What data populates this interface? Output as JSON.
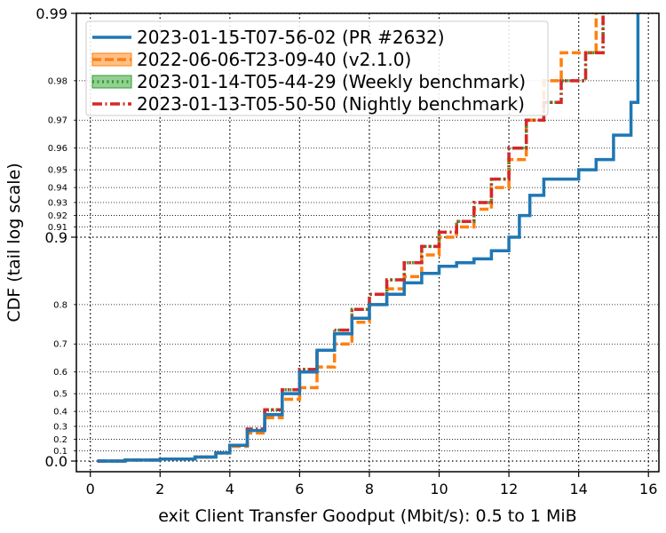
{
  "chart_data": {
    "type": "line",
    "xlabel": "exit Client Transfer Goodput (Mbit/s): 0.5 to 1 MiB",
    "ylabel": "CDF (tail log scale)",
    "xlim": [
      -0.4,
      16.3
    ],
    "x_ticks": [
      0,
      2,
      4,
      6,
      8,
      10,
      12,
      14,
      16
    ],
    "y_scale": "tail log",
    "y_ticks_major": [
      {
        "value": 0.0,
        "label": "0.0"
      },
      {
        "value": 0.9,
        "label": "0.9"
      },
      {
        "value": 0.99,
        "label": "0.99"
      }
    ],
    "y_ticks_minor": [
      {
        "value": 0.1,
        "label": "0.1"
      },
      {
        "value": 0.2,
        "label": "0.2"
      },
      {
        "value": 0.3,
        "label": "0.3"
      },
      {
        "value": 0.4,
        "label": "0.4"
      },
      {
        "value": 0.5,
        "label": "0.5"
      },
      {
        "value": 0.6,
        "label": "0.6"
      },
      {
        "value": 0.7,
        "label": "0.7"
      },
      {
        "value": 0.8,
        "label": "0.8"
      },
      {
        "value": 0.91,
        "label": "0.91"
      },
      {
        "value": 0.92,
        "label": "0.92"
      },
      {
        "value": 0.93,
        "label": "0.93"
      },
      {
        "value": 0.94,
        "label": "0.94"
      },
      {
        "value": 0.95,
        "label": "0.95"
      },
      {
        "value": 0.96,
        "label": "0.96"
      },
      {
        "value": 0.97,
        "label": "0.97"
      },
      {
        "value": 0.98,
        "label": "0.98"
      }
    ],
    "grid": true,
    "legend_position": "top-left",
    "series": [
      {
        "name": "2023-01-15-T07-56-02 (PR #2632)",
        "color": "#1f77b4",
        "style": "solid",
        "points": [
          [
            0.2,
            0.0
          ],
          [
            1.0,
            0.01
          ],
          [
            2.0,
            0.02
          ],
          [
            3.0,
            0.04
          ],
          [
            3.6,
            0.08
          ],
          [
            4.0,
            0.15
          ],
          [
            4.5,
            0.27
          ],
          [
            5.0,
            0.38
          ],
          [
            5.5,
            0.5
          ],
          [
            6.0,
            0.6
          ],
          [
            6.5,
            0.68
          ],
          [
            7.0,
            0.73
          ],
          [
            7.5,
            0.77
          ],
          [
            8.0,
            0.8
          ],
          [
            8.5,
            0.82
          ],
          [
            9.0,
            0.84
          ],
          [
            9.5,
            0.855
          ],
          [
            10.0,
            0.865
          ],
          [
            10.5,
            0.87
          ],
          [
            11.0,
            0.875
          ],
          [
            11.5,
            0.885
          ],
          [
            12.0,
            0.9
          ],
          [
            12.3,
            0.92
          ],
          [
            12.6,
            0.935
          ],
          [
            13.0,
            0.945
          ],
          [
            14.0,
            0.95
          ],
          [
            14.5,
            0.955
          ],
          [
            15.0,
            0.965
          ],
          [
            15.5,
            0.975
          ],
          [
            15.7,
            0.99
          ]
        ]
      },
      {
        "name": "2022-06-06-T23-09-40 (v2.1.0)",
        "color": "#ff7f0e",
        "style": "dashed",
        "points": [
          [
            0.2,
            0.0
          ],
          [
            1.0,
            0.01
          ],
          [
            2.0,
            0.02
          ],
          [
            3.0,
            0.04
          ],
          [
            3.6,
            0.08
          ],
          [
            4.0,
            0.14
          ],
          [
            4.5,
            0.25
          ],
          [
            5.0,
            0.36
          ],
          [
            5.5,
            0.47
          ],
          [
            6.0,
            0.53
          ],
          [
            6.5,
            0.62
          ],
          [
            7.0,
            0.7
          ],
          [
            7.5,
            0.76
          ],
          [
            8.0,
            0.8
          ],
          [
            8.5,
            0.83
          ],
          [
            9.0,
            0.85
          ],
          [
            9.5,
            0.88
          ],
          [
            10.0,
            0.9
          ],
          [
            10.5,
            0.91
          ],
          [
            11.0,
            0.925
          ],
          [
            11.5,
            0.94
          ],
          [
            12.0,
            0.955
          ],
          [
            12.5,
            0.97
          ],
          [
            13.0,
            0.98
          ],
          [
            13.5,
            0.985
          ],
          [
            14.5,
            0.99
          ]
        ]
      },
      {
        "name": "2023-01-14-T05-44-29 (Weekly benchmark)",
        "color": "#2ca02c",
        "style": "dotted",
        "points": [
          [
            0.2,
            0.0
          ],
          [
            1.0,
            0.01
          ],
          [
            2.0,
            0.02
          ],
          [
            3.0,
            0.04
          ],
          [
            3.6,
            0.08
          ],
          [
            4.0,
            0.15
          ],
          [
            4.5,
            0.28
          ],
          [
            5.0,
            0.41
          ],
          [
            5.5,
            0.52
          ],
          [
            6.0,
            0.61
          ],
          [
            6.5,
            0.68
          ],
          [
            7.0,
            0.74
          ],
          [
            7.5,
            0.79
          ],
          [
            8.0,
            0.82
          ],
          [
            8.5,
            0.845
          ],
          [
            9.0,
            0.87
          ],
          [
            9.5,
            0.89
          ],
          [
            10.0,
            0.905
          ],
          [
            10.5,
            0.915
          ],
          [
            11.0,
            0.93
          ],
          [
            11.5,
            0.945
          ],
          [
            12.0,
            0.96
          ],
          [
            12.5,
            0.97
          ],
          [
            13.0,
            0.975
          ],
          [
            13.5,
            0.98
          ],
          [
            14.2,
            0.985
          ],
          [
            14.7,
            0.99
          ]
        ]
      },
      {
        "name": "2023-01-13-T05-50-50 (Nightly benchmark)",
        "color": "#d62728",
        "style": "dashdot",
        "points": [
          [
            0.2,
            0.0
          ],
          [
            1.0,
            0.01
          ],
          [
            2.0,
            0.02
          ],
          [
            3.0,
            0.04
          ],
          [
            3.6,
            0.08
          ],
          [
            4.0,
            0.15
          ],
          [
            4.5,
            0.28
          ],
          [
            5.0,
            0.41
          ],
          [
            5.5,
            0.52
          ],
          [
            6.0,
            0.61
          ],
          [
            6.5,
            0.68
          ],
          [
            7.0,
            0.74
          ],
          [
            7.5,
            0.79
          ],
          [
            8.0,
            0.82
          ],
          [
            8.5,
            0.845
          ],
          [
            9.0,
            0.87
          ],
          [
            9.5,
            0.89
          ],
          [
            10.0,
            0.905
          ],
          [
            10.5,
            0.915
          ],
          [
            11.0,
            0.93
          ],
          [
            11.5,
            0.945
          ],
          [
            12.0,
            0.96
          ],
          [
            12.5,
            0.97
          ],
          [
            13.0,
            0.975
          ],
          [
            13.5,
            0.98
          ],
          [
            14.2,
            0.985
          ],
          [
            14.7,
            0.99
          ]
        ]
      }
    ]
  }
}
